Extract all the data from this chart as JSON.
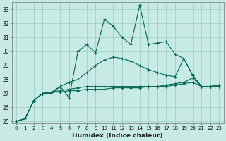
{
  "xlabel": "Humidex (Indice chaleur)",
  "background_color": "#c8eae4",
  "grid_color": "#99ccbb",
  "line_color": "#006655",
  "xlim": [
    -0.5,
    23.5
  ],
  "ylim": [
    24.85,
    33.5
  ],
  "xticks": [
    0,
    1,
    2,
    3,
    4,
    5,
    6,
    7,
    8,
    9,
    10,
    11,
    12,
    13,
    14,
    15,
    16,
    17,
    18,
    19,
    20,
    21,
    22,
    23
  ],
  "yticks": [
    25,
    26,
    27,
    28,
    29,
    30,
    31,
    32,
    33
  ],
  "series": [
    {
      "y": [
        25.0,
        25.2,
        26.5,
        27.0,
        27.0,
        27.5,
        26.7,
        30.0,
        30.5,
        29.9,
        32.3,
        31.8,
        31.0,
        30.5,
        33.3,
        30.5,
        30.6,
        30.7,
        29.8,
        29.5,
        28.3,
        27.5,
        27.5,
        27.5
      ]
    },
    {
      "y": [
        25.0,
        25.2,
        26.5,
        27.0,
        27.1,
        27.5,
        27.8,
        28.0,
        28.5,
        29.0,
        29.4,
        29.6,
        29.5,
        29.3,
        29.0,
        28.7,
        28.5,
        28.3,
        28.2,
        29.5,
        28.3,
        27.5,
        27.5,
        27.6
      ]
    },
    {
      "y": [
        25.0,
        25.2,
        26.5,
        27.0,
        27.1,
        27.2,
        27.3,
        27.4,
        27.5,
        27.5,
        27.5,
        27.5,
        27.5,
        27.5,
        27.5,
        27.5,
        27.5,
        27.6,
        27.7,
        27.8,
        28.1,
        27.5,
        27.5,
        27.6
      ]
    },
    {
      "y": [
        25.0,
        25.2,
        26.5,
        27.0,
        27.1,
        27.1,
        27.2,
        27.2,
        27.3,
        27.3,
        27.3,
        27.4,
        27.4,
        27.4,
        27.4,
        27.5,
        27.5,
        27.5,
        27.6,
        27.7,
        27.8,
        27.5,
        27.5,
        27.5
      ]
    }
  ]
}
